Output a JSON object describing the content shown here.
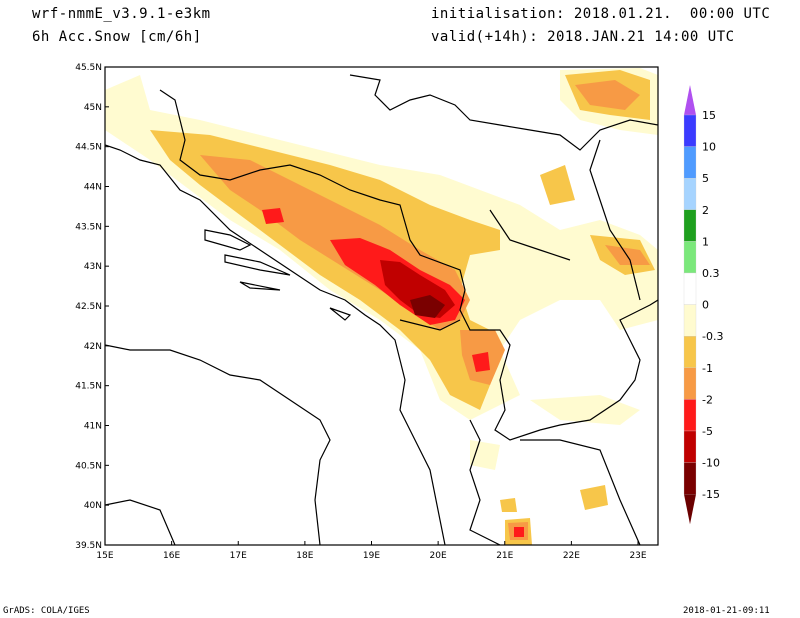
{
  "header": {
    "model": "wrf-nmmE_v3.9.1-e3km",
    "field": "6h Acc.Snow [cm/6h]",
    "init": "initialisation: 2018.01.21.  00:00 UTC",
    "valid": "valid(+14h): 2018.JAN.21 14:00 UTC"
  },
  "footer": {
    "left": "GrADS: COLA/IGES",
    "right": "2018-01-21-09:11"
  },
  "map": {
    "lon_range": [
      15,
      23.3
    ],
    "lat_range": [
      39.5,
      45.5
    ],
    "lat_labels": [
      "45.5N",
      "45N",
      "44.5N",
      "44N",
      "43.5N",
      "43N",
      "42.5N",
      "42N",
      "41.5N",
      "41N",
      "40.5N",
      "40N",
      "39.5N"
    ],
    "lat_values": [
      45.5,
      45,
      44.5,
      44,
      43.5,
      43,
      42.5,
      42,
      41.5,
      41,
      40.5,
      40,
      39.5
    ],
    "lon_labels": [
      "15E",
      "16E",
      "17E",
      "18E",
      "19E",
      "20E",
      "21E",
      "22E",
      "23E"
    ],
    "lon_values": [
      15,
      16,
      17,
      18,
      19,
      20,
      21,
      22,
      23
    ]
  },
  "colorbar": {
    "labels": [
      "15",
      "10",
      "5",
      "2",
      "1",
      "0.3",
      "0",
      "-0.3",
      "-1",
      "-2",
      "-5",
      "-10",
      "-15"
    ],
    "colors": [
      "#8a2be2",
      "#3b3bff",
      "#4f9bff",
      "#a6d4ff",
      "#1ea01e",
      "#7be87b",
      "#ffffff",
      "#fffbd0",
      "#f7c64a",
      "#f79a45",
      "#ff1a1a",
      "#c00000",
      "#7a0000"
    ],
    "top_arrow_color": "#b050f0",
    "bottom_arrow_color": "#6b0000"
  }
}
